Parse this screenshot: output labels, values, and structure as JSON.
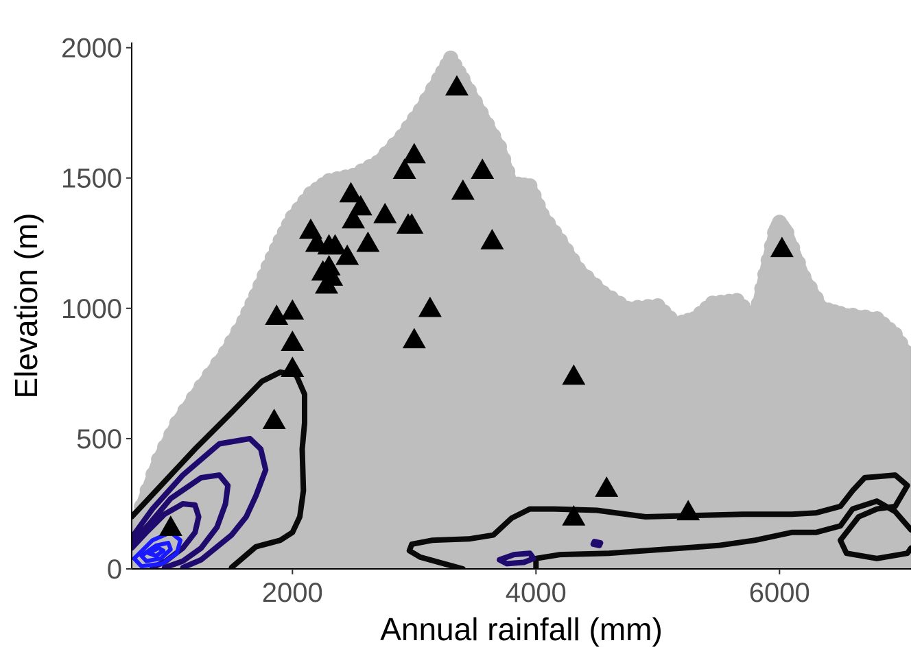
{
  "chart_data": {
    "type": "scatter",
    "title": "",
    "xlabel": "Annual rainfall (mm)",
    "ylabel": "Elevation (m)",
    "xlim": [
      680,
      7080
    ],
    "ylim": [
      0,
      2020
    ],
    "x_ticks": [
      2000,
      4000,
      6000
    ],
    "y_ticks": [
      0,
      500,
      1000,
      1500,
      2000
    ],
    "grid": false,
    "legend": "none",
    "colors": {
      "background_points": "#bebebe",
      "markers": "#000000",
      "contour_outer": "#0a0a0a",
      "contour_inner": "#1f0a6e",
      "contour_core": "#1a1aff"
    },
    "background_envelope": {
      "description_hidden": true,
      "points": [
        [
          680,
          0
        ],
        [
          680,
          120
        ],
        [
          760,
          240
        ],
        [
          900,
          420
        ],
        [
          1050,
          560
        ],
        [
          1250,
          700
        ],
        [
          1450,
          830
        ],
        [
          1600,
          950
        ],
        [
          1700,
          1050
        ],
        [
          1800,
          1160
        ],
        [
          1900,
          1260
        ],
        [
          2000,
          1350
        ],
        [
          2150,
          1440
        ],
        [
          2300,
          1490
        ],
        [
          2500,
          1510
        ],
        [
          2700,
          1560
        ],
        [
          2900,
          1660
        ],
        [
          3050,
          1760
        ],
        [
          3200,
          1880
        ],
        [
          3300,
          1960
        ],
        [
          3400,
          1880
        ],
        [
          3550,
          1750
        ],
        [
          3700,
          1620
        ],
        [
          3800,
          1480
        ],
        [
          3950,
          1470
        ],
        [
          4050,
          1360
        ],
        [
          4200,
          1260
        ],
        [
          4350,
          1150
        ],
        [
          4550,
          1060
        ],
        [
          4750,
          1000
        ],
        [
          5000,
          1010
        ],
        [
          5150,
          940
        ],
        [
          5300,
          960
        ],
        [
          5450,
          1020
        ],
        [
          5650,
          1030
        ],
        [
          5800,
          960
        ],
        [
          5880,
          1130
        ],
        [
          5960,
          1290
        ],
        [
          6000,
          1330
        ],
        [
          6060,
          1290
        ],
        [
          6200,
          1120
        ],
        [
          6350,
          1000
        ],
        [
          6500,
          980
        ],
        [
          6800,
          960
        ],
        [
          6950,
          900
        ],
        [
          7080,
          800
        ],
        [
          7080,
          0
        ]
      ]
    },
    "markers": {
      "shape": "triangle",
      "x": [
        1000,
        1850,
        1870,
        2000,
        2000,
        2000,
        2150,
        2200,
        2250,
        2280,
        2300,
        2300,
        2320,
        2350,
        2450,
        2480,
        2500,
        2560,
        2620,
        2760,
        2920,
        2950,
        2980,
        3000,
        3000,
        3130,
        3350,
        3400,
        3560,
        3640,
        4310,
        4310,
        4580,
        5250,
        6020
      ],
      "y": [
        160,
        570,
        970,
        990,
        870,
        770,
        1300,
        1250,
        1140,
        1090,
        1240,
        1160,
        1120,
        1240,
        1200,
        1440,
        1340,
        1390,
        1250,
        1360,
        1530,
        1320,
        1320,
        1590,
        880,
        1000,
        1850,
        1450,
        1530,
        1260,
        740,
        200,
        310,
        220,
        1230
      ]
    },
    "density_contours": [
      {
        "level": "outer-1",
        "closed": false,
        "points": [
          [
            680,
            200
          ],
          [
            900,
            310
          ],
          [
            1200,
            460
          ],
          [
            1500,
            600
          ],
          [
            1750,
            720
          ],
          [
            1900,
            755
          ],
          [
            2030,
            745
          ],
          [
            2100,
            670
          ],
          [
            2100,
            560
          ],
          [
            2080,
            460
          ],
          [
            2090,
            300
          ],
          [
            2060,
            200
          ],
          [
            2000,
            140
          ],
          [
            1900,
            110
          ],
          [
            1700,
            85
          ],
          [
            1500,
            5
          ]
        ]
      },
      {
        "level": "outer-2",
        "closed": false,
        "points": [
          [
            3400,
            0
          ],
          [
            3050,
            45
          ],
          [
            2960,
            70
          ],
          [
            2980,
            95
          ],
          [
            3150,
            110
          ],
          [
            3450,
            115
          ],
          [
            3650,
            130
          ],
          [
            3800,
            195
          ],
          [
            3950,
            230
          ],
          [
            4150,
            230
          ],
          [
            4500,
            225
          ],
          [
            4900,
            200
          ],
          [
            5300,
            205
          ],
          [
            5700,
            210
          ],
          [
            6100,
            210
          ],
          [
            6300,
            215
          ],
          [
            6500,
            240
          ],
          [
            6600,
            300
          ],
          [
            6700,
            350
          ],
          [
            6950,
            360
          ],
          [
            7050,
            320
          ],
          [
            6950,
            240
          ],
          [
            6800,
            230
          ],
          [
            6650,
            200
          ],
          [
            6500,
            110
          ],
          [
            6550,
            60
          ],
          [
            6800,
            40
          ],
          [
            7050,
            60
          ],
          [
            7080,
            80
          ]
        ]
      },
      {
        "level": "outer-3",
        "closed": false,
        "points": [
          [
            7080,
            150
          ],
          [
            6950,
            220
          ],
          [
            6800,
            260
          ],
          [
            6600,
            230
          ],
          [
            6500,
            165
          ],
          [
            6300,
            140
          ],
          [
            6100,
            140
          ],
          [
            5800,
            110
          ],
          [
            5500,
            90
          ],
          [
            5200,
            80
          ],
          [
            4900,
            70
          ],
          [
            4600,
            60
          ],
          [
            4200,
            55
          ],
          [
            4000,
            40
          ],
          [
            4000,
            0
          ]
        ]
      },
      {
        "level": "inner-1",
        "closed": false,
        "points": [
          [
            680,
            120
          ],
          [
            850,
            230
          ],
          [
            1100,
            360
          ],
          [
            1400,
            480
          ],
          [
            1650,
            500
          ],
          [
            1740,
            460
          ],
          [
            1780,
            380
          ],
          [
            1700,
            280
          ],
          [
            1620,
            200
          ],
          [
            1500,
            130
          ],
          [
            1250,
            35
          ],
          [
            1100,
            5
          ]
        ]
      },
      {
        "level": "inner-2",
        "closed": false,
        "points": [
          [
            680,
            100
          ],
          [
            820,
            170
          ],
          [
            1000,
            270
          ],
          [
            1250,
            350
          ],
          [
            1400,
            360
          ],
          [
            1470,
            320
          ],
          [
            1450,
            250
          ],
          [
            1380,
            160
          ],
          [
            1250,
            80
          ],
          [
            1100,
            30
          ],
          [
            950,
            5
          ]
        ]
      },
      {
        "level": "inner-3",
        "closed": false,
        "points": [
          [
            680,
            80
          ],
          [
            800,
            140
          ],
          [
            950,
            210
          ],
          [
            1100,
            250
          ],
          [
            1200,
            245
          ],
          [
            1230,
            200
          ],
          [
            1200,
            140
          ],
          [
            1100,
            80
          ],
          [
            960,
            30
          ],
          [
            850,
            5
          ]
        ]
      },
      {
        "level": "inner-4",
        "closed": true,
        "points": [
          [
            3700,
            35
          ],
          [
            3820,
            55
          ],
          [
            3950,
            60
          ],
          [
            3980,
            40
          ],
          [
            3900,
            25
          ],
          [
            3760,
            20
          ]
        ]
      },
      {
        "level": "inner-5",
        "closed": true,
        "points": [
          [
            4480,
            105
          ],
          [
            4530,
            100
          ],
          [
            4520,
            90
          ],
          [
            4470,
            95
          ]
        ]
      },
      {
        "level": "core-1",
        "closed": true,
        "points": [
          [
            700,
            40
          ],
          [
            850,
            110
          ],
          [
            1000,
            140
          ],
          [
            1080,
            110
          ],
          [
            1050,
            60
          ],
          [
            930,
            20
          ],
          [
            760,
            10
          ]
        ]
      },
      {
        "level": "core-2",
        "closed": true,
        "points": [
          [
            760,
            50
          ],
          [
            880,
            90
          ],
          [
            980,
            100
          ],
          [
            1000,
            75
          ],
          [
            920,
            40
          ],
          [
            800,
            30
          ]
        ]
      },
      {
        "level": "core-3",
        "closed": true,
        "points": [
          [
            820,
            60
          ],
          [
            900,
            80
          ],
          [
            940,
            70
          ],
          [
            880,
            50
          ]
        ]
      }
    ]
  }
}
